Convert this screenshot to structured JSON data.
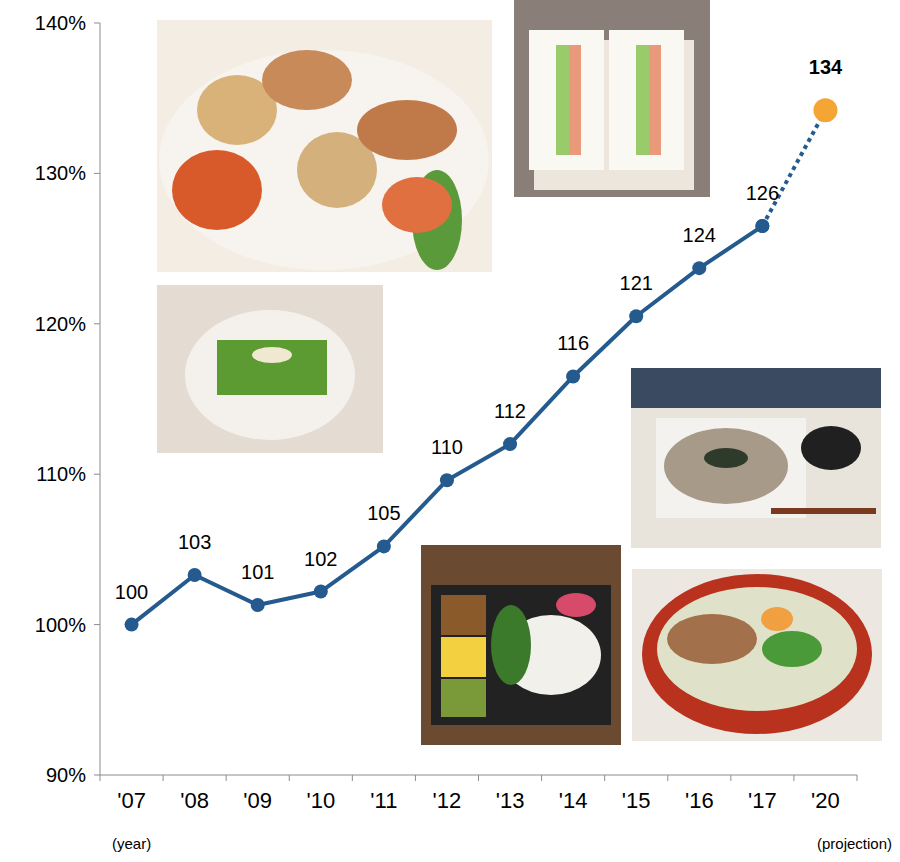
{
  "chart_data": {
    "type": "line",
    "color": "#245a8e",
    "categories": [
      "'07",
      "'08",
      "'09",
      "'10",
      "'11",
      "'12",
      "'13",
      "'14",
      "'15",
      "'16",
      "'17",
      "'20"
    ],
    "x_label": "(year)",
    "annotation": "(projection)",
    "ylim": [
      90,
      140
    ],
    "yticks": [
      {
        "value": 90,
        "label": "90%"
      },
      {
        "value": 100,
        "label": "100%"
      },
      {
        "value": 110,
        "label": "110%"
      },
      {
        "value": 120,
        "label": "120%"
      },
      {
        "value": 130,
        "label": "130%"
      },
      {
        "value": 140,
        "label": "140%"
      }
    ],
    "grid": false,
    "data_labels": true,
    "series": [
      {
        "color": "#245a8e",
        "marker": "circle",
        "line_style": "solid",
        "values": [
          100,
          103.3,
          101.3,
          102.2,
          105.2,
          109.6,
          112,
          116.5,
          120.5,
          123.7,
          126.5,
          null
        ],
        "value_labels": [
          "100",
          "103",
          "101",
          "102",
          "105",
          "110",
          "112",
          "116",
          "121",
          "124",
          "126",
          null
        ]
      },
      {
        "color": "#f5a534",
        "marker": "circle",
        "line_style": "dotted",
        "colors": [
          null,
          null,
          null,
          null,
          null,
          null,
          null,
          null,
          null,
          null,
          "#245a8e",
          "#f5a534"
        ],
        "values": [
          null,
          null,
          null,
          null,
          null,
          null,
          null,
          null,
          null,
          null,
          126.5,
          134.2
        ],
        "value_labels": [
          null,
          null,
          null,
          null,
          null,
          null,
          null,
          null,
          null,
          null,
          null,
          "134"
        ]
      }
    ]
  }
}
